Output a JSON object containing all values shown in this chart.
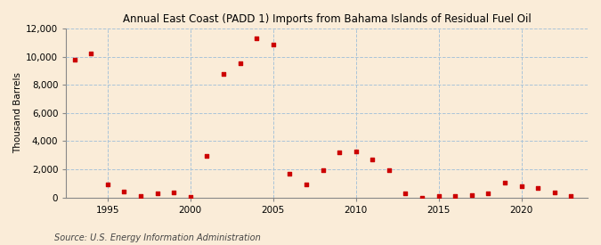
{
  "title": "Annual East Coast (PADD 1) Imports from Bahama Islands of Residual Fuel Oil",
  "ylabel": "Thousand Barrels",
  "source": "Source: U.S. Energy Information Administration",
  "background_color": "#faecd8",
  "grid_color": "#aac4d8",
  "marker_color": "#cc0000",
  "years": [
    1993,
    1994,
    1995,
    1996,
    1997,
    1998,
    1999,
    2000,
    2001,
    2002,
    2003,
    2004,
    2005,
    2006,
    2007,
    2008,
    2009,
    2010,
    2011,
    2012,
    2013,
    2014,
    2015,
    2016,
    2017,
    2018,
    2019,
    2020,
    2021,
    2022,
    2023
  ],
  "values": [
    9800,
    10200,
    900,
    450,
    100,
    280,
    350,
    50,
    2950,
    8800,
    9550,
    11300,
    10850,
    1700,
    900,
    1950,
    3200,
    3300,
    2700,
    1950,
    280,
    0,
    130,
    100,
    200,
    280,
    1050,
    800,
    650,
    390,
    120
  ],
  "ylim": [
    0,
    12000
  ],
  "yticks": [
    0,
    2000,
    4000,
    6000,
    8000,
    10000,
    12000
  ],
  "xlim": [
    1992.5,
    2024
  ],
  "xticks": [
    1995,
    2000,
    2005,
    2010,
    2015,
    2020
  ]
}
